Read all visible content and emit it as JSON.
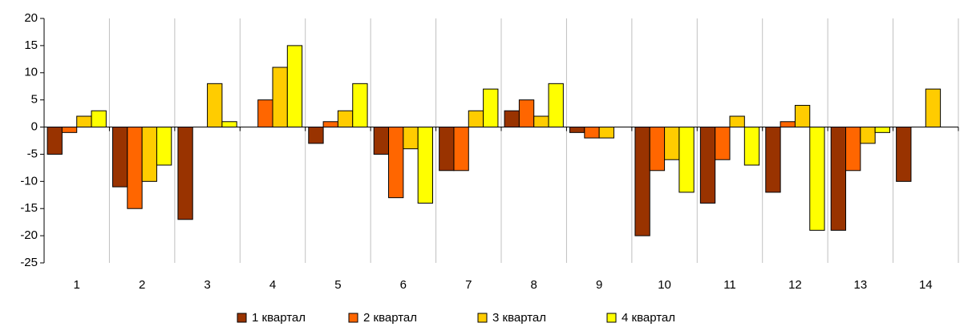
{
  "chart_data": {
    "type": "bar",
    "categories": [
      "1",
      "2",
      "3",
      "4",
      "5",
      "6",
      "7",
      "8",
      "9",
      "10",
      "11",
      "12",
      "13",
      "14"
    ],
    "series": [
      {
        "name": "1 квартал",
        "color": "#993300",
        "values": [
          -5,
          -11,
          -17,
          0,
          -3,
          -5,
          -8,
          3,
          -1,
          -20,
          -14,
          -12,
          -19,
          -10
        ]
      },
      {
        "name": "2 квартал",
        "color": "#ff6600",
        "values": [
          -1,
          -15,
          0,
          5,
          1,
          -13,
          -8,
          5,
          -2,
          -8,
          -6,
          1,
          -8,
          0
        ]
      },
      {
        "name": "3 квартал",
        "color": "#ffcc00",
        "values": [
          2,
          -10,
          8,
          11,
          3,
          -4,
          3,
          2,
          -2,
          -6,
          2,
          4,
          -3,
          7
        ]
      },
      {
        "name": "4 квартал",
        "color": "#ffff00",
        "values": [
          3,
          -7,
          1,
          15,
          8,
          -14,
          7,
          8,
          0,
          -12,
          -7,
          -19,
          -1,
          0
        ]
      }
    ],
    "ylim": [
      -25,
      20
    ],
    "yticks": [
      -25,
      -20,
      -15,
      -10,
      -5,
      0,
      5,
      10,
      15,
      20
    ],
    "legend": "bottom"
  }
}
